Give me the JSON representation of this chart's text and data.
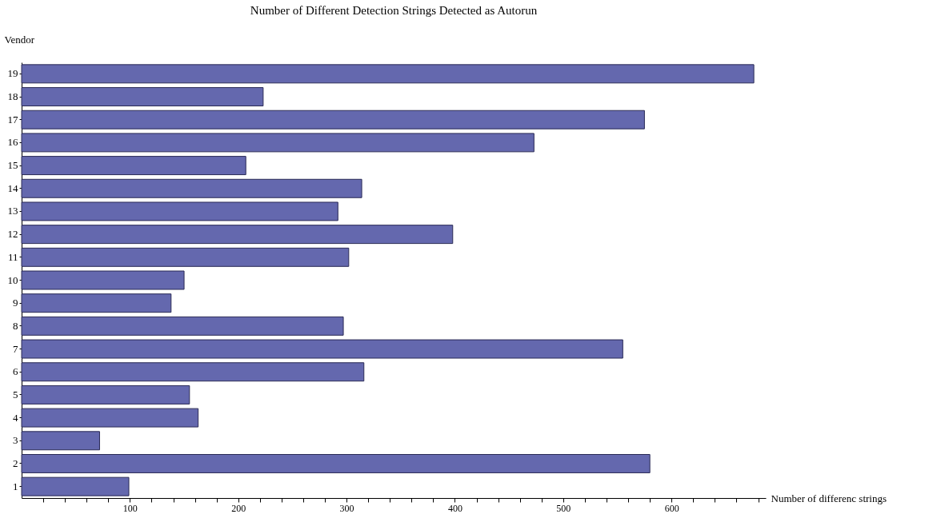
{
  "chart_data": {
    "type": "bar",
    "orientation": "horizontal",
    "title": "Number of Different Detection Strings Detected as Autorun",
    "xlabel": "Number of differenc strings",
    "ylabel": "Vendor",
    "categories": [
      "19",
      "18",
      "17",
      "16",
      "15",
      "14",
      "13",
      "12",
      "11",
      "10",
      "9",
      "8",
      "7",
      "6",
      "5",
      "4",
      "3",
      "2",
      "1"
    ],
    "values": [
      676,
      223,
      575,
      473,
      207,
      314,
      292,
      398,
      302,
      150,
      138,
      297,
      555,
      316,
      155,
      163,
      72,
      580,
      99
    ],
    "color": "#6468ae",
    "xlim": [
      0,
      687
    ],
    "xticks": [
      {
        "value": 20,
        "label": null
      },
      {
        "value": 40,
        "label": null
      },
      {
        "value": 60,
        "label": null
      },
      {
        "value": 80,
        "label": null
      },
      100,
      {
        "value": 120,
        "label": null
      },
      {
        "value": 140,
        "label": null
      },
      {
        "value": 160,
        "label": null
      },
      {
        "value": 180,
        "label": null
      },
      200,
      {
        "value": 220,
        "label": null
      },
      {
        "value": 240,
        "label": null
      },
      {
        "value": 260,
        "label": null
      },
      {
        "value": 280,
        "label": null
      },
      300,
      {
        "value": 320,
        "label": null
      },
      {
        "value": 340,
        "label": null
      },
      {
        "value": 360,
        "label": null
      },
      {
        "value": 380,
        "label": null
      },
      400,
      {
        "value": 420,
        "label": null
      },
      {
        "value": 440,
        "label": null
      },
      {
        "value": 460,
        "label": null
      },
      {
        "value": 480,
        "label": null
      },
      500,
      {
        "value": 520,
        "label": null
      },
      {
        "value": 540,
        "label": null
      },
      {
        "value": 560,
        "label": null
      },
      {
        "value": 580,
        "label": null
      },
      600,
      {
        "value": 620,
        "label": null
      },
      {
        "value": 640,
        "label": null
      },
      {
        "value": 660,
        "label": null
      },
      {
        "value": 680,
        "label": null
      }
    ],
    "grid": false
  }
}
